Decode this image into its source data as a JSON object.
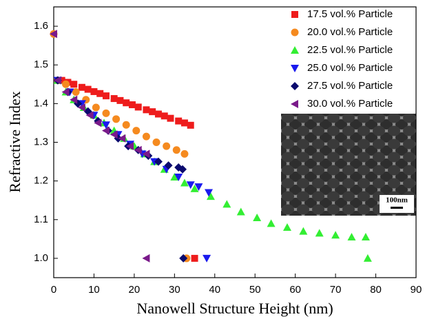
{
  "chart_data": {
    "type": "scatter",
    "x_label": "Nanowell Structure Height (nm)",
    "y_label": "Refractive Index",
    "xlim": [
      0,
      90
    ],
    "xticks": [
      0,
      10,
      20,
      30,
      40,
      50,
      60,
      70,
      80,
      90
    ],
    "ylim": [
      0.95,
      1.65
    ],
    "yticks": [
      {
        "value": 1,
        "label": "1.0"
      },
      1.1,
      1.2,
      1.3,
      1.4,
      1.5,
      1.6
    ],
    "legend": "upper right",
    "inset_scale_label": "100nm",
    "series": [
      {
        "name": "17.5 vol.% Particle",
        "color": "#ee1c1c",
        "marker": "square",
        "x": [
          2,
          3.5,
          5,
          7,
          8.5,
          10,
          11.5,
          13,
          15,
          16.5,
          18,
          19.5,
          21,
          23,
          24.5,
          26,
          27.5,
          29,
          31,
          32.5,
          34,
          35
        ],
        "values": [
          1.46,
          1.455,
          1.45,
          1.442,
          1.437,
          1.431,
          1.426,
          1.42,
          1.413,
          1.408,
          1.402,
          1.397,
          1.391,
          1.384,
          1.379,
          1.373,
          1.368,
          1.362,
          1.355,
          1.35,
          1.344,
          1.0
        ]
      },
      {
        "name": "20.0 vol.% Particle",
        "color": "#f58a1f",
        "marker": "circle",
        "x": [
          0,
          1,
          3,
          5.5,
          8,
          10.5,
          13,
          15.5,
          18,
          20.5,
          23,
          25.5,
          28,
          30.5,
          32.5,
          33
        ],
        "values": [
          1.58,
          1.46,
          1.45,
          1.43,
          1.41,
          1.39,
          1.375,
          1.36,
          1.345,
          1.33,
          1.315,
          1.3,
          1.29,
          1.28,
          1.27,
          1.0
        ]
      },
      {
        "name": "22.5 vol.% Particle",
        "color": "#33ee33",
        "marker": "triangle-up",
        "x": [
          1,
          3,
          5,
          7.5,
          10,
          12.5,
          15,
          17.5,
          20,
          22.5,
          25,
          27.5,
          30,
          32.5,
          35,
          39,
          43,
          46.5,
          50.5,
          54,
          58,
          62,
          66,
          70,
          74,
          77.5,
          78
        ],
        "values": [
          1.46,
          1.43,
          1.41,
          1.39,
          1.37,
          1.35,
          1.33,
          1.31,
          1.29,
          1.27,
          1.25,
          1.23,
          1.21,
          1.195,
          1.18,
          1.16,
          1.14,
          1.12,
          1.105,
          1.09,
          1.08,
          1.07,
          1.065,
          1.06,
          1.055,
          1.055,
          1.0
        ]
      },
      {
        "name": "25.0 vol.% Particle",
        "color": "#1a1aee",
        "marker": "triangle-down",
        "x": [
          1,
          4,
          7,
          10,
          13,
          16,
          19,
          22,
          25,
          28,
          31,
          34,
          36,
          38.5,
          38
        ],
        "values": [
          1.46,
          1.43,
          1.4,
          1.37,
          1.345,
          1.32,
          1.295,
          1.27,
          1.25,
          1.23,
          1.21,
          1.19,
          1.185,
          1.17,
          1.0
        ]
      },
      {
        "name": "27.5 vol.% Particle",
        "color": "#0a0a6e",
        "marker": "diamond",
        "x": [
          1,
          3.5,
          6,
          8.5,
          11,
          13.5,
          16,
          18.5,
          21,
          23.5,
          26,
          28.5,
          31,
          32,
          32.2
        ],
        "values": [
          1.46,
          1.43,
          1.4,
          1.38,
          1.355,
          1.33,
          1.31,
          1.29,
          1.28,
          1.265,
          1.25,
          1.24,
          1.235,
          1.23,
          1.0
        ]
      },
      {
        "name": "30.0 vol.% Particle",
        "color": "#7a1a8a",
        "marker": "triangle-left",
        "x": [
          0,
          1,
          3,
          5,
          7,
          9,
          11,
          13,
          15,
          17,
          19,
          21,
          23,
          23
        ],
        "values": [
          1.58,
          1.46,
          1.43,
          1.41,
          1.39,
          1.37,
          1.35,
          1.33,
          1.32,
          1.31,
          1.29,
          1.28,
          1.27,
          1.0
        ]
      }
    ]
  }
}
